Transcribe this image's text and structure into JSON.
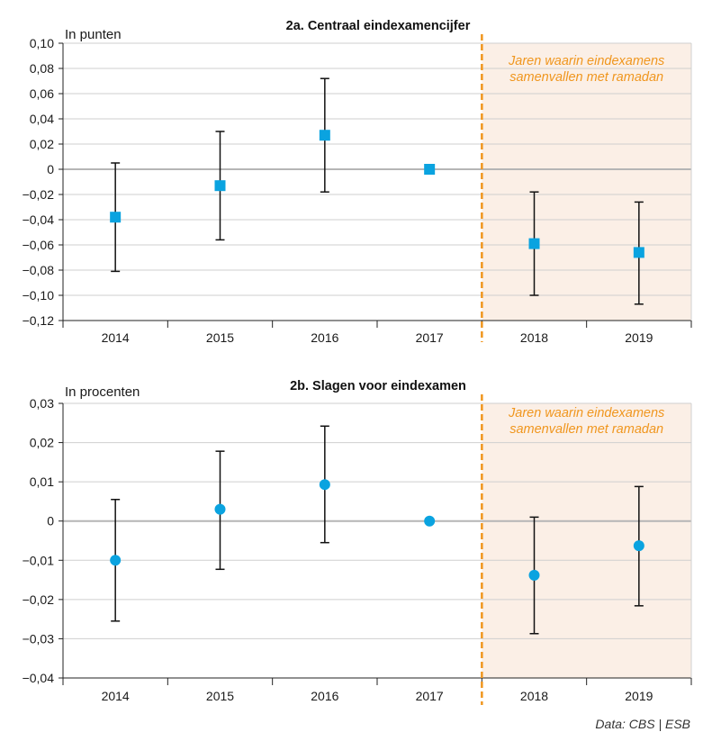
{
  "source": "Data: CBS | ESB",
  "colors": {
    "marker": "#0aa3e0",
    "errorbar": "#111111",
    "zero_line": "#b5b5b5",
    "grid": "#cfcfcf",
    "shade": "#fbefe6",
    "divider": "#f0961e",
    "annotation": "#f0961e"
  },
  "chart_data": [
    {
      "type": "scatter",
      "title": "2a. Centraal eindexamencijfer",
      "ylabel": "In punten",
      "marker": "square",
      "categories": [
        "2014",
        "2015",
        "2016",
        "2017",
        "2018",
        "2019"
      ],
      "yticks": [
        "0,10",
        "0,08",
        "0,06",
        "0,04",
        "0,02",
        "0",
        "−0,02",
        "−0,04",
        "−0,06",
        "−0,08",
        "−0,10",
        "−0,12"
      ],
      "ylim": [
        -0.12,
        0.1
      ],
      "grid": true,
      "series": [
        {
          "values": [
            -0.038,
            -0.013,
            0.027,
            0.0,
            -0.059,
            -0.066
          ],
          "lower": [
            -0.081,
            -0.056,
            -0.018,
            0.0,
            -0.1,
            -0.107
          ],
          "upper": [
            0.005,
            0.03,
            0.072,
            0.0,
            -0.018,
            -0.026
          ]
        }
      ],
      "highlight": {
        "from_category": "2018",
        "to_category": "2019",
        "label_lines": [
          "Jaren waarin eindexamens",
          "samenvallen met ramadan"
        ]
      }
    },
    {
      "type": "scatter",
      "title": "2b. Slagen voor eindexamen",
      "ylabel": "In procenten",
      "marker": "circle",
      "categories": [
        "2014",
        "2015",
        "2016",
        "2017",
        "2018",
        "2019"
      ],
      "yticks": [
        "0,03",
        "0,02",
        "0,01",
        "0",
        "−0,01",
        "−0,02",
        "−0,03",
        "−0,04"
      ],
      "ylim": [
        -0.04,
        0.03
      ],
      "grid": true,
      "series": [
        {
          "values": [
            -0.01,
            0.003,
            0.0093,
            0.0,
            -0.0138,
            -0.0063
          ],
          "lower": [
            -0.0255,
            -0.0123,
            -0.0055,
            0.0,
            -0.0287,
            -0.0216
          ],
          "upper": [
            0.0055,
            0.0178,
            0.0242,
            0.0,
            0.001,
            0.0088
          ]
        }
      ],
      "highlight": {
        "from_category": "2018",
        "to_category": "2019",
        "label_lines": [
          "Jaren waarin eindexamens",
          "samenvallen met ramadan"
        ]
      }
    }
  ]
}
